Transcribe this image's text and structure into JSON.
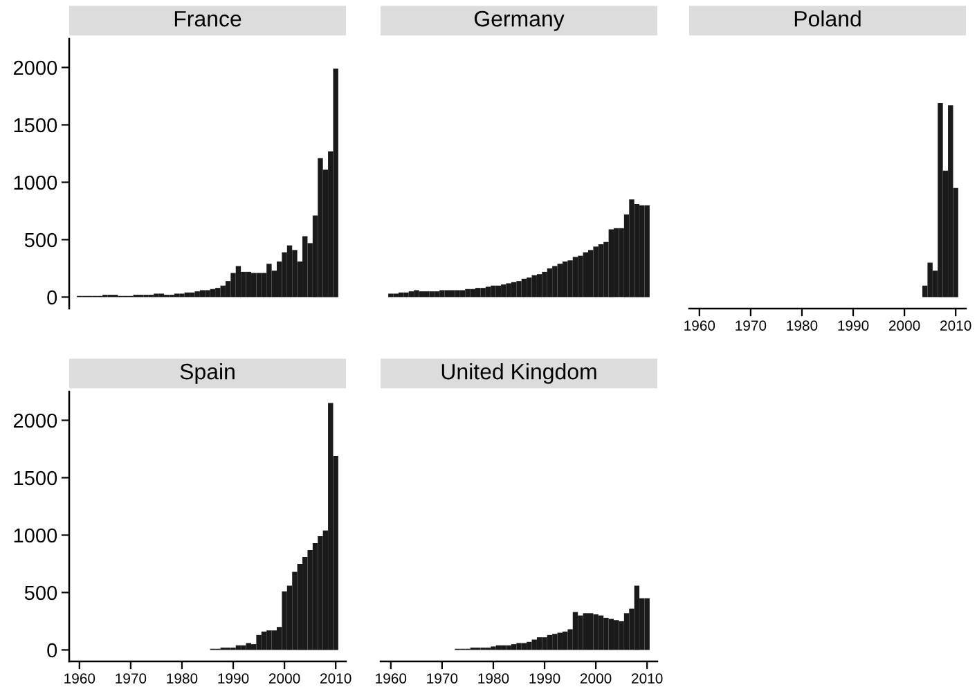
{
  "chart_data": [
    {
      "type": "bar",
      "title": "France",
      "color": "#1a1a1a",
      "tick_labels": "y",
      "ylim": [
        -100,
        2250
      ],
      "yticks": [
        0,
        500,
        1000,
        1500,
        2000
      ],
      "x": [
        1960,
        1961,
        1962,
        1963,
        1964,
        1965,
        1966,
        1967,
        1968,
        1969,
        1970,
        1971,
        1972,
        1973,
        1974,
        1975,
        1976,
        1977,
        1978,
        1979,
        1980,
        1981,
        1982,
        1983,
        1984,
        1985,
        1986,
        1987,
        1988,
        1989,
        1990,
        1991,
        1992,
        1993,
        1994,
        1995,
        1996,
        1997,
        1998,
        1999,
        2000,
        2001,
        2002,
        2003,
        2004,
        2005,
        2006,
        2007,
        2008,
        2009,
        2010
      ],
      "values": [
        10,
        10,
        10,
        10,
        10,
        20,
        20,
        20,
        10,
        10,
        10,
        20,
        20,
        20,
        20,
        30,
        30,
        20,
        20,
        30,
        30,
        40,
        40,
        50,
        60,
        60,
        70,
        80,
        100,
        140,
        210,
        270,
        220,
        220,
        210,
        210,
        210,
        290,
        230,
        310,
        390,
        450,
        410,
        310,
        530,
        470,
        710,
        1210,
        1110,
        1270,
        1990
      ]
    },
    {
      "type": "bar",
      "title": "Germany",
      "color": "#1a1a1a",
      "tick_labels": false,
      "yticks": [
        0,
        500,
        1000,
        1500,
        2000
      ],
      "x": [
        1960,
        1961,
        1962,
        1963,
        1964,
        1965,
        1966,
        1967,
        1968,
        1969,
        1970,
        1971,
        1972,
        1973,
        1974,
        1975,
        1976,
        1977,
        1978,
        1979,
        1980,
        1981,
        1982,
        1983,
        1984,
        1985,
        1986,
        1987,
        1988,
        1989,
        1990,
        1991,
        1992,
        1993,
        1994,
        1995,
        1996,
        1997,
        1998,
        1999,
        2000,
        2001,
        2002,
        2003,
        2004,
        2005,
        2006,
        2007,
        2008,
        2009,
        2010
      ],
      "values": [
        30,
        30,
        40,
        40,
        50,
        60,
        50,
        50,
        50,
        50,
        60,
        60,
        60,
        60,
        60,
        70,
        70,
        80,
        80,
        90,
        100,
        100,
        110,
        120,
        130,
        140,
        160,
        170,
        190,
        200,
        220,
        250,
        270,
        290,
        310,
        320,
        350,
        360,
        390,
        410,
        440,
        460,
        480,
        590,
        600,
        600,
        720,
        850,
        810,
        800,
        800
      ]
    },
    {
      "type": "bar",
      "title": "Poland",
      "color": "#1a1a1a",
      "tick_labels": "x",
      "xlim": [
        1958,
        2012
      ],
      "xticks": [
        1960,
        1970,
        1980,
        1990,
        2000,
        2010
      ],
      "yticks": [
        0,
        500,
        1000,
        1500,
        2000
      ],
      "x": [
        2004,
        2005,
        2006,
        2007,
        2008,
        2009,
        2010
      ],
      "values": [
        100,
        300,
        230,
        1690,
        1100,
        1670,
        950
      ]
    },
    {
      "type": "bar",
      "title": "Spain",
      "color": "#1a1a1a",
      "xlim": [
        1958,
        2012
      ],
      "xticks": [
        1960,
        1970,
        1980,
        1990,
        2000,
        2010
      ],
      "ylim": [
        -100,
        2250
      ],
      "yticks": [
        0,
        500,
        1000,
        1500,
        2000
      ],
      "x": [
        1986,
        1987,
        1988,
        1989,
        1990,
        1991,
        1992,
        1993,
        1994,
        1995,
        1996,
        1997,
        1998,
        1999,
        2000,
        2001,
        2002,
        2003,
        2004,
        2005,
        2006,
        2007,
        2008,
        2009,
        2010
      ],
      "values": [
        10,
        10,
        20,
        20,
        20,
        40,
        40,
        60,
        50,
        130,
        160,
        170,
        170,
        200,
        510,
        560,
        680,
        750,
        810,
        870,
        930,
        990,
        1040,
        2150,
        1690
      ]
    },
    {
      "type": "bar",
      "title": "United Kingdom",
      "color": "#1a1a1a",
      "tick_labels": "x",
      "xlim": [
        1958,
        2012
      ],
      "xticks": [
        1960,
        1970,
        1980,
        1990,
        2000,
        2010
      ],
      "yticks": [
        0,
        500,
        1000,
        1500,
        2000
      ],
      "x": [
        1973,
        1974,
        1975,
        1976,
        1977,
        1978,
        1979,
        1980,
        1981,
        1982,
        1983,
        1984,
        1985,
        1986,
        1987,
        1988,
        1989,
        1990,
        1991,
        1992,
        1993,
        1994,
        1995,
        1996,
        1997,
        1998,
        1999,
        2000,
        2001,
        2002,
        2003,
        2004,
        2005,
        2006,
        2007,
        2008,
        2009,
        2010
      ],
      "values": [
        10,
        10,
        10,
        20,
        20,
        20,
        20,
        30,
        40,
        40,
        40,
        50,
        60,
        60,
        70,
        90,
        110,
        110,
        130,
        140,
        150,
        160,
        180,
        330,
        300,
        320,
        320,
        310,
        300,
        280,
        270,
        260,
        250,
        320,
        360,
        560,
        450,
        450
      ]
    }
  ]
}
